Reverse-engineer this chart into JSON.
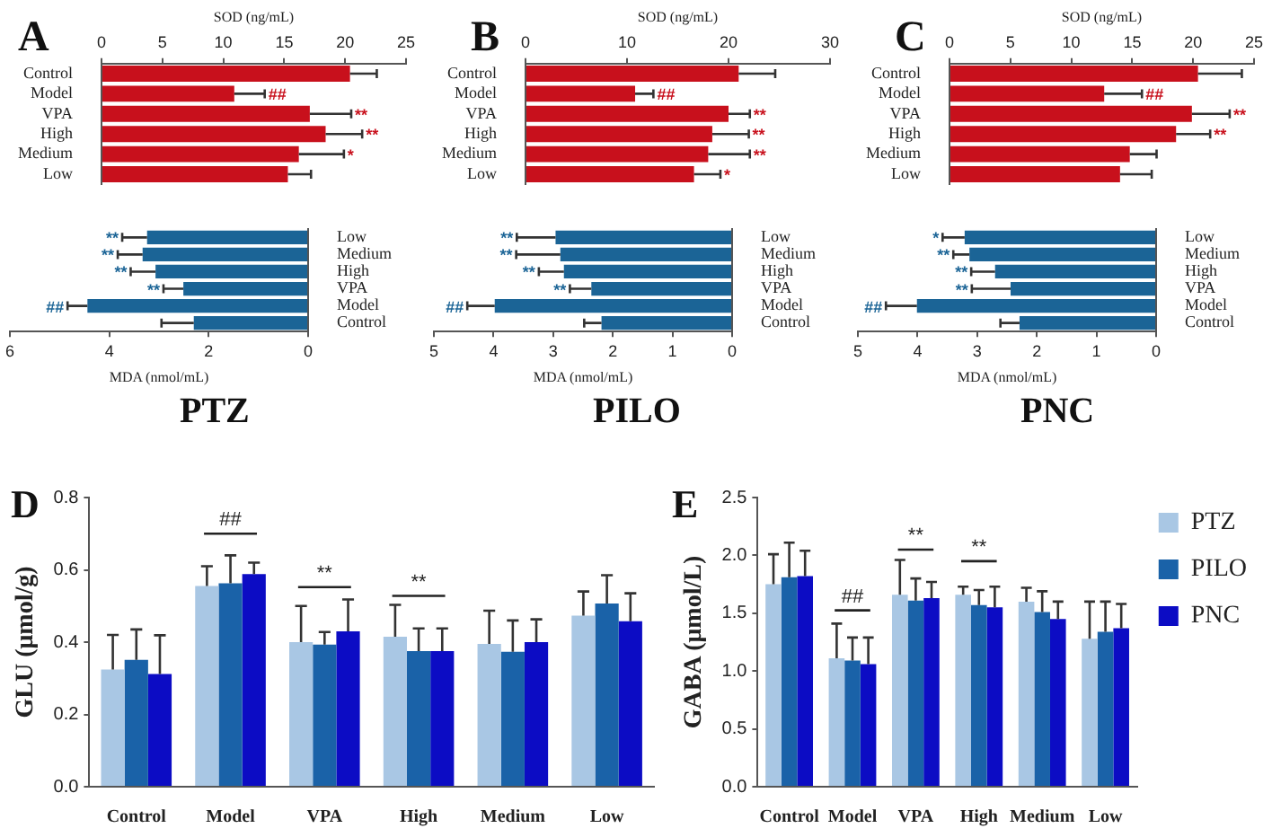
{
  "chart_data": [
    {
      "type": "bar",
      "orientation": "horizontal",
      "title": "A",
      "xlabel": "SOD (ng/mL)",
      "categories": [
        "Control",
        "Model",
        "VPA",
        "High",
        "Medium",
        "Low"
      ],
      "values": [
        20.4,
        10.9,
        17.1,
        18.4,
        16.2,
        15.3
      ],
      "errors": [
        2.2,
        2.5,
        3.4,
        3.0,
        3.7,
        1.9
      ],
      "color": "#c8101c",
      "xlim": [
        0,
        25
      ],
      "xticks": [
        0,
        5,
        10,
        15,
        20,
        25
      ],
      "grid": false,
      "annotations": [
        {
          "text": "##",
          "x": 13.4,
          "y": "Model"
        },
        {
          "text": "**",
          "x": 20.5,
          "y": "VPA"
        },
        {
          "text": "**",
          "x": 21.4,
          "y": "High"
        },
        {
          "text": "*",
          "x": 19.9,
          "y": "Medium"
        }
      ]
    },
    {
      "type": "bar",
      "orientation": "horizontal",
      "title": "PTZ",
      "xlabel": "MDA (nmol/mL)",
      "categories": [
        "Low",
        "Medium",
        "High",
        "VPA",
        "Model",
        "Control"
      ],
      "values": [
        3.24,
        3.33,
        3.07,
        2.51,
        4.44,
        2.3
      ],
      "errors": [
        0.5,
        0.5,
        0.5,
        0.4,
        0.4,
        0.65
      ],
      "color": "#1b6496",
      "xlim": [
        6,
        0
      ],
      "xticks": [
        6,
        4,
        2,
        0
      ],
      "grid": false,
      "annotations": [
        {
          "text": "**",
          "x": 3.74,
          "y": "Low"
        },
        {
          "text": "**",
          "x": 3.83,
          "y": "Medium"
        },
        {
          "text": "**",
          "x": 3.57,
          "y": "High"
        },
        {
          "text": "**",
          "x": 2.91,
          "y": "VPA"
        },
        {
          "text": "##",
          "x": 4.84,
          "y": "Model"
        }
      ]
    },
    {
      "type": "bar",
      "orientation": "horizontal",
      "title": "B",
      "xlabel": "SOD (ng/mL)",
      "categories": [
        "Control",
        "Model",
        "VPA",
        "High",
        "Medium",
        "Low"
      ],
      "values": [
        21.0,
        10.8,
        20.0,
        18.4,
        18.0,
        16.6
      ],
      "errors": [
        3.6,
        1.8,
        2.1,
        3.6,
        4.1,
        2.6
      ],
      "color": "#c8101c",
      "xlim": [
        0,
        30
      ],
      "xticks": [
        0,
        10,
        20,
        30
      ],
      "grid": false,
      "annotations": [
        {
          "text": "##",
          "x": 12.6,
          "y": "Model"
        },
        {
          "text": "**",
          "x": 22.1,
          "y": "VPA"
        },
        {
          "text": "**",
          "x": 22.0,
          "y": "High"
        },
        {
          "text": "**",
          "x": 22.1,
          "y": "Medium"
        },
        {
          "text": "*",
          "x": 19.2,
          "y": "Low"
        }
      ]
    },
    {
      "type": "bar",
      "orientation": "horizontal",
      "title": "PILO",
      "xlabel": "MDA (nmol/mL)",
      "categories": [
        "Low",
        "Medium",
        "High",
        "VPA",
        "Model",
        "Control"
      ],
      "values": [
        2.96,
        2.88,
        2.82,
        2.36,
        3.98,
        2.19
      ],
      "errors": [
        0.65,
        0.74,
        0.42,
        0.36,
        0.46,
        0.29
      ],
      "color": "#1b6496",
      "xlim": [
        5,
        0
      ],
      "xticks": [
        5,
        4,
        3,
        2,
        1,
        0
      ],
      "grid": false,
      "annotations": [
        {
          "text": "**",
          "x": 3.61,
          "y": "Low"
        },
        {
          "text": "**",
          "x": 3.62,
          "y": "Medium"
        },
        {
          "text": "**",
          "x": 3.24,
          "y": "High"
        },
        {
          "text": "**",
          "x": 2.72,
          "y": "VPA"
        },
        {
          "text": "##",
          "x": 4.44,
          "y": "Model"
        }
      ]
    },
    {
      "type": "bar",
      "orientation": "horizontal",
      "title": "C",
      "xlabel": "SOD (ng/mL)",
      "categories": [
        "Control",
        "Model",
        "VPA",
        "High",
        "Medium",
        "Low"
      ],
      "values": [
        20.4,
        12.7,
        19.9,
        18.6,
        14.8,
        14.0
      ],
      "errors": [
        3.6,
        3.1,
        3.1,
        2.8,
        2.2,
        2.6
      ],
      "color": "#c8101c",
      "xlim": [
        0,
        25
      ],
      "xticks": [
        0,
        5,
        10,
        15,
        20,
        25
      ],
      "grid": false,
      "annotations": [
        {
          "text": "##",
          "x": 15.8,
          "y": "Model"
        },
        {
          "text": "**",
          "x": 23.0,
          "y": "VPA"
        },
        {
          "text": "**",
          "x": 21.4,
          "y": "High"
        }
      ]
    },
    {
      "type": "bar",
      "orientation": "horizontal",
      "title": "PNC",
      "xlabel": "MDA (nmol/mL)",
      "categories": [
        "Low",
        "Medium",
        "High",
        "VPA",
        "Model",
        "Control"
      ],
      "values": [
        3.21,
        3.13,
        2.7,
        2.44,
        4.01,
        2.29
      ],
      "errors": [
        0.37,
        0.27,
        0.4,
        0.65,
        0.52,
        0.32
      ],
      "color": "#1b6496",
      "xlim": [
        5,
        0
      ],
      "xticks": [
        5,
        4,
        3,
        2,
        1,
        0
      ],
      "grid": false,
      "annotations": [
        {
          "text": "*",
          "x": 3.58,
          "y": "Low"
        },
        {
          "text": "**",
          "x": 3.4,
          "y": "Medium"
        },
        {
          "text": "**",
          "x": 3.1,
          "y": "High"
        },
        {
          "text": "**",
          "x": 3.09,
          "y": "VPA"
        },
        {
          "text": "##",
          "x": 4.53,
          "y": "Model"
        }
      ]
    },
    {
      "type": "bar",
      "title": "D",
      "ylabel": "GLU (μmol/g)",
      "categories": [
        "Control",
        "Model",
        "VPA",
        "High",
        "Medium",
        "Low"
      ],
      "ylim": [
        0,
        0.8
      ],
      "yticks": [
        {
          "value": 0,
          "label": "0.0"
        },
        0.2,
        0.4,
        0.6,
        0.8
      ],
      "grid": false,
      "series": [
        {
          "color": "#a9c7e4",
          "values": [
            0.324,
            0.555,
            0.4,
            0.415,
            0.395,
            0.473
          ],
          "errors": [
            0.096,
            0.055,
            0.1,
            0.088,
            0.092,
            0.067
          ]
        },
        {
          "color": "#1a62a8",
          "values": [
            0.351,
            0.563,
            0.393,
            0.375,
            0.373,
            0.507
          ],
          "errors": [
            0.084,
            0.077,
            0.035,
            0.063,
            0.087,
            0.078
          ]
        },
        {
          "color": "#0c0cc4",
          "values": [
            0.312,
            0.588,
            0.43,
            0.375,
            0.4,
            0.458
          ],
          "errors": [
            0.107,
            0.032,
            0.088,
            0.063,
            0.063,
            0.077
          ]
        }
      ],
      "annotations": [
        "##",
        "**",
        "**"
      ]
    },
    {
      "type": "bar",
      "title": "E",
      "ylabel": "GABA (μmol/L)",
      "categories": [
        "Control",
        "Model",
        "VPA",
        "High",
        "Medium",
        "Low"
      ],
      "ylim": [
        0,
        2.5
      ],
      "yticks": [
        {
          "value": 0,
          "label": "0.0"
        },
        {
          "value": 0.5,
          "label": "0.5"
        },
        {
          "value": 1,
          "label": "1.0"
        },
        {
          "value": 1.5,
          "label": "1.5"
        },
        {
          "value": 2,
          "label": "2.0"
        },
        {
          "value": 2.5,
          "label": "2.5"
        }
      ],
      "grid": false,
      "legend": "right",
      "series": [
        {
          "name": "PTZ",
          "color": "#a9c7e4",
          "values": [
            1.75,
            1.11,
            1.66,
            1.66,
            1.6,
            1.28
          ],
          "errors": [
            0.26,
            0.3,
            0.3,
            0.07,
            0.12,
            0.32
          ]
        },
        {
          "name": "PILO",
          "color": "#1a62a8",
          "values": [
            1.81,
            1.09,
            1.61,
            1.57,
            1.51,
            1.34
          ],
          "errors": [
            0.3,
            0.2,
            0.19,
            0.13,
            0.18,
            0.26
          ]
        },
        {
          "name": "PNC",
          "color": "#0c0cc4",
          "values": [
            1.82,
            1.06,
            1.63,
            1.55,
            1.45,
            1.37
          ],
          "errors": [
            0.22,
            0.23,
            0.14,
            0.18,
            0.15,
            0.21
          ]
        }
      ],
      "annotations": [
        "##",
        "**",
        "**"
      ]
    }
  ]
}
